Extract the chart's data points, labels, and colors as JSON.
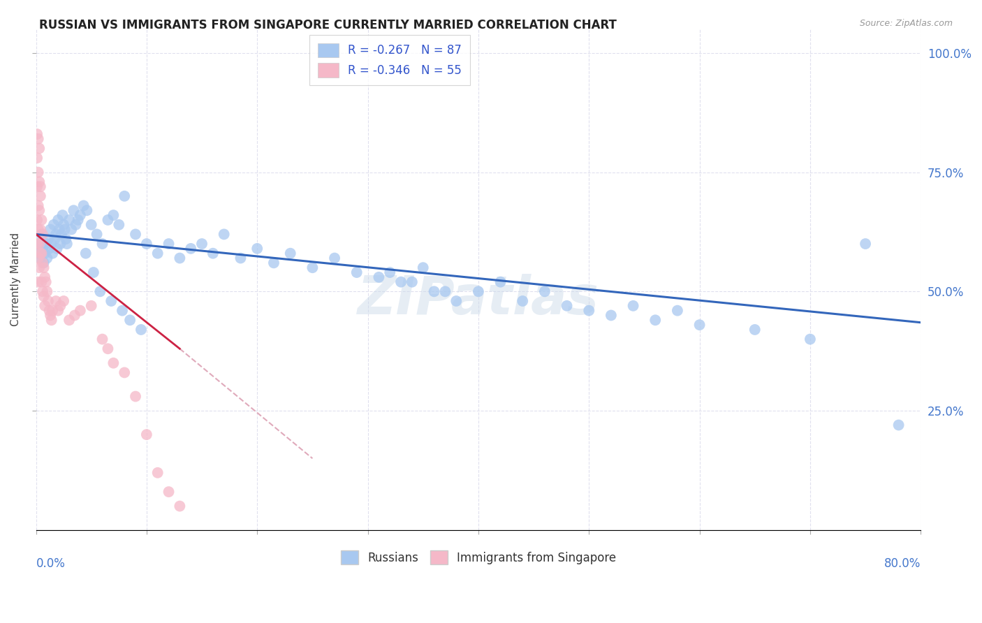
{
  "title": "RUSSIAN VS IMMIGRANTS FROM SINGAPORE CURRENTLY MARRIED CORRELATION CHART",
  "source": "Source: ZipAtlas.com",
  "ylabel": "Currently Married",
  "blue_color": "#a8c8f0",
  "pink_color": "#f5b8c8",
  "trend_blue": "#3366bb",
  "trend_pink": "#cc2244",
  "trend_dash_color": "#e0aabb",
  "background": "#ffffff",
  "grid_color": "#e0e0ee",
  "xlim": [
    0.0,
    0.8
  ],
  "ylim": [
    0.0,
    1.05
  ],
  "yticks": [
    0.25,
    0.5,
    0.75,
    1.0
  ],
  "ytick_labels": [
    "25.0%",
    "50.0%",
    "75.0%",
    "100.0%"
  ],
  "xticks": [
    0.0,
    0.1,
    0.2,
    0.3,
    0.4,
    0.5,
    0.6,
    0.7,
    0.8
  ],
  "trend_blue_x0": 0.0,
  "trend_blue_y0": 0.62,
  "trend_blue_x1": 0.8,
  "trend_blue_y1": 0.435,
  "trend_pink_x0": 0.0,
  "trend_pink_y0": 0.62,
  "trend_pink_x1": 0.13,
  "trend_pink_y1": 0.38,
  "trend_dash_x0": 0.13,
  "trend_dash_y0": 0.38,
  "trend_dash_x1": 0.25,
  "trend_dash_y1": 0.15,
  "russian_x": [
    0.002,
    0.003,
    0.004,
    0.005,
    0.006,
    0.007,
    0.008,
    0.009,
    0.01,
    0.011,
    0.012,
    0.013,
    0.014,
    0.015,
    0.016,
    0.017,
    0.018,
    0.019,
    0.02,
    0.021,
    0.022,
    0.023,
    0.024,
    0.025,
    0.026,
    0.027,
    0.028,
    0.03,
    0.032,
    0.034,
    0.036,
    0.038,
    0.04,
    0.043,
    0.046,
    0.05,
    0.055,
    0.06,
    0.065,
    0.07,
    0.075,
    0.08,
    0.09,
    0.1,
    0.11,
    0.12,
    0.13,
    0.14,
    0.15,
    0.16,
    0.17,
    0.185,
    0.2,
    0.215,
    0.23,
    0.25,
    0.27,
    0.29,
    0.31,
    0.33,
    0.35,
    0.37,
    0.32,
    0.34,
    0.36,
    0.38,
    0.4,
    0.42,
    0.44,
    0.46,
    0.48,
    0.5,
    0.52,
    0.54,
    0.56,
    0.58,
    0.6,
    0.65,
    0.7,
    0.75,
    0.78,
    0.045,
    0.052,
    0.058,
    0.068,
    0.078,
    0.085,
    0.095
  ],
  "russian_y": [
    0.6,
    0.58,
    0.57,
    0.62,
    0.59,
    0.56,
    0.58,
    0.6,
    0.57,
    0.61,
    0.59,
    0.63,
    0.6,
    0.58,
    0.64,
    0.61,
    0.62,
    0.59,
    0.65,
    0.63,
    0.6,
    0.62,
    0.66,
    0.64,
    0.63,
    0.61,
    0.6,
    0.65,
    0.63,
    0.67,
    0.64,
    0.65,
    0.66,
    0.68,
    0.67,
    0.64,
    0.62,
    0.6,
    0.65,
    0.66,
    0.64,
    0.7,
    0.62,
    0.6,
    0.58,
    0.6,
    0.57,
    0.59,
    0.6,
    0.58,
    0.62,
    0.57,
    0.59,
    0.56,
    0.58,
    0.55,
    0.57,
    0.54,
    0.53,
    0.52,
    0.55,
    0.5,
    0.54,
    0.52,
    0.5,
    0.48,
    0.5,
    0.52,
    0.48,
    0.5,
    0.47,
    0.46,
    0.45,
    0.47,
    0.44,
    0.46,
    0.43,
    0.42,
    0.4,
    0.6,
    0.22,
    0.58,
    0.54,
    0.5,
    0.48,
    0.46,
    0.44,
    0.42
  ],
  "singapore_x": [
    0.001,
    0.001,
    0.001,
    0.001,
    0.002,
    0.002,
    0.002,
    0.002,
    0.003,
    0.003,
    0.003,
    0.003,
    0.004,
    0.004,
    0.004,
    0.005,
    0.005,
    0.005,
    0.006,
    0.006,
    0.006,
    0.007,
    0.007,
    0.008,
    0.008,
    0.009,
    0.01,
    0.011,
    0.012,
    0.013,
    0.014,
    0.015,
    0.018,
    0.02,
    0.022,
    0.025,
    0.03,
    0.035,
    0.04,
    0.05,
    0.06,
    0.065,
    0.07,
    0.08,
    0.09,
    0.1,
    0.11,
    0.12,
    0.13,
    0.002,
    0.003,
    0.001,
    0.002,
    0.004
  ],
  "singapore_y": [
    0.78,
    0.72,
    0.65,
    0.6,
    0.68,
    0.63,
    0.57,
    0.52,
    0.73,
    0.67,
    0.6,
    0.55,
    0.7,
    0.63,
    0.58,
    0.65,
    0.58,
    0.52,
    0.62,
    0.56,
    0.5,
    0.55,
    0.49,
    0.53,
    0.47,
    0.52,
    0.5,
    0.48,
    0.46,
    0.45,
    0.44,
    0.46,
    0.48,
    0.46,
    0.47,
    0.48,
    0.44,
    0.45,
    0.46,
    0.47,
    0.4,
    0.38,
    0.35,
    0.33,
    0.28,
    0.2,
    0.12,
    0.08,
    0.05,
    0.82,
    0.8,
    0.83,
    0.75,
    0.72
  ]
}
